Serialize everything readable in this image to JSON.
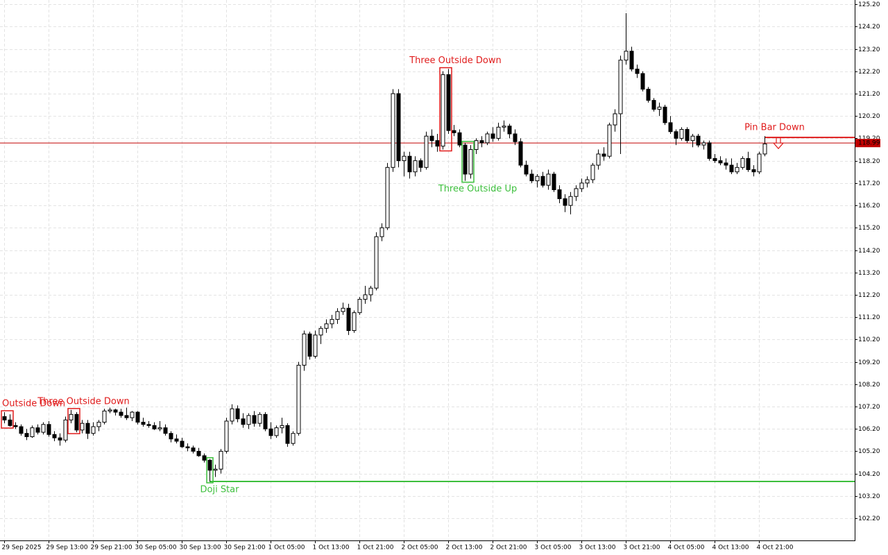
{
  "chart_data": {
    "type": "candlestick",
    "up_color": "#ffffff",
    "down_color": "#000000",
    "outline_color": "#000000",
    "grid": true,
    "ylim": [
      101.21,
      125.39
    ],
    "yticks": [
      {
        "value": 102.2,
        "label": "102.20"
      },
      {
        "value": 103.2,
        "label": "103.20"
      },
      {
        "value": 104.2,
        "label": "104.20"
      },
      {
        "value": 105.2,
        "label": "105.20"
      },
      {
        "value": 106.2,
        "label": "106.20"
      },
      {
        "value": 107.2,
        "label": "107.20"
      },
      {
        "value": 108.2,
        "label": "108.20"
      },
      {
        "value": 109.2,
        "label": "109.20"
      },
      {
        "value": 110.2,
        "label": "110.20"
      },
      {
        "value": 111.2,
        "label": "111.20"
      },
      {
        "value": 112.2,
        "label": "112.20"
      },
      {
        "value": 113.2,
        "label": "113.20"
      },
      {
        "value": 114.2,
        "label": "114.20"
      },
      {
        "value": 115.2,
        "label": "115.20"
      },
      {
        "value": 116.2,
        "label": "116.20"
      },
      {
        "value": 117.2,
        "label": "117.20"
      },
      {
        "value": 118.2,
        "label": "118.20"
      },
      {
        "value": 119.2,
        "label": "119.20"
      },
      {
        "value": 120.2,
        "label": "120.20"
      },
      {
        "value": 121.2,
        "label": "121.20"
      },
      {
        "value": 122.2,
        "label": "122.20"
      },
      {
        "value": 123.2,
        "label": "123.20"
      },
      {
        "value": 124.2,
        "label": "124.20"
      },
      {
        "value": 125.2,
        "label": "125.20"
      }
    ],
    "categories": [
      "29 Sep 2025",
      null,
      null,
      null,
      null,
      null,
      null,
      null,
      "29 Sep 13:00",
      null,
      null,
      null,
      null,
      null,
      null,
      null,
      "29 Sep 21:00",
      null,
      null,
      null,
      null,
      null,
      null,
      null,
      "30 Sep 05:00",
      null,
      null,
      null,
      null,
      null,
      null,
      null,
      "30 Sep 13:00",
      null,
      null,
      null,
      null,
      null,
      null,
      null,
      "30 Sep 21:00",
      null,
      null,
      null,
      null,
      null,
      null,
      null,
      "1 Oct 05:00",
      null,
      null,
      null,
      null,
      null,
      null,
      null,
      "1 Oct 13:00",
      null,
      null,
      null,
      null,
      null,
      null,
      null,
      "1 Oct 21:00",
      null,
      null,
      null,
      null,
      null,
      null,
      null,
      "2 Oct 05:00",
      null,
      null,
      null,
      null,
      null,
      null,
      null,
      "2 Oct 13:00",
      null,
      null,
      null,
      null,
      null,
      null,
      null,
      "2 Oct 21:00",
      null,
      null,
      null,
      null,
      null,
      null,
      null,
      "3 Oct 05:00",
      null,
      null,
      null,
      null,
      null,
      null,
      null,
      "3 Oct 13:00",
      null,
      null,
      null,
      null,
      null,
      null,
      null,
      "3 Oct 21:00",
      null,
      null,
      null,
      null,
      null,
      null,
      null,
      "4 Oct 05:00",
      null,
      null,
      null,
      null,
      null,
      null,
      null,
      "4 Oct 13:00",
      null,
      null,
      null,
      null,
      null,
      null,
      null,
      "4 Oct 21:00",
      null
    ],
    "ohlc": [
      [
        106.75,
        106.95,
        106.45,
        106.6
      ],
      [
        106.6,
        106.85,
        106.3,
        106.35
      ],
      [
        106.35,
        106.5,
        106.2,
        106.3
      ],
      [
        106.3,
        106.4,
        105.9,
        106.0
      ],
      [
        106.0,
        106.2,
        105.7,
        105.85
      ],
      [
        105.85,
        106.35,
        105.8,
        106.25
      ],
      [
        106.25,
        106.4,
        105.95,
        106.05
      ],
      [
        106.05,
        106.5,
        105.95,
        106.4
      ],
      [
        106.4,
        106.55,
        105.85,
        105.95
      ],
      [
        105.95,
        106.1,
        105.65,
        105.8
      ],
      [
        105.8,
        106.0,
        105.45,
        105.7
      ],
      [
        105.7,
        106.75,
        105.6,
        106.6
      ],
      [
        106.6,
        107.05,
        106.45,
        106.85
      ],
      [
        106.85,
        106.95,
        106.05,
        106.15
      ],
      [
        106.15,
        106.6,
        106.0,
        106.45
      ],
      [
        106.45,
        106.6,
        105.75,
        106.0
      ],
      [
        106.0,
        106.5,
        105.9,
        106.3
      ],
      [
        106.3,
        106.6,
        106.1,
        106.5
      ],
      [
        106.5,
        107.1,
        106.4,
        107.0
      ],
      [
        107.0,
        107.15,
        106.9,
        107.05
      ],
      [
        107.05,
        107.1,
        106.8,
        106.95
      ],
      [
        106.95,
        107.1,
        106.7,
        106.8
      ],
      [
        106.8,
        107.15,
        106.6,
        106.7
      ],
      [
        106.7,
        107.0,
        106.55,
        106.95
      ],
      [
        106.95,
        107.0,
        106.4,
        106.5
      ],
      [
        106.5,
        106.7,
        106.3,
        106.4
      ],
      [
        106.4,
        106.55,
        106.25,
        106.35
      ],
      [
        106.35,
        106.5,
        106.15,
        106.2
      ],
      [
        106.2,
        106.55,
        106.1,
        106.25
      ],
      [
        106.25,
        106.4,
        105.9,
        106.0
      ],
      [
        106.0,
        106.1,
        105.6,
        105.75
      ],
      [
        105.75,
        105.95,
        105.55,
        105.65
      ],
      [
        105.65,
        105.8,
        105.35,
        105.4
      ],
      [
        105.4,
        105.55,
        105.2,
        105.35
      ],
      [
        105.35,
        105.45,
        105.1,
        105.2
      ],
      [
        105.2,
        105.35,
        104.95,
        105.0
      ],
      [
        105.0,
        105.1,
        104.7,
        104.8
      ],
      [
        104.8,
        104.85,
        103.85,
        104.35
      ],
      [
        104.35,
        104.6,
        104.05,
        104.4
      ],
      [
        104.4,
        105.3,
        104.2,
        105.2
      ],
      [
        105.2,
        106.7,
        105.1,
        106.55
      ],
      [
        106.55,
        107.3,
        106.4,
        107.1
      ],
      [
        107.1,
        107.25,
        106.5,
        106.65
      ],
      [
        106.65,
        106.9,
        106.25,
        106.4
      ],
      [
        106.4,
        106.9,
        106.2,
        106.8
      ],
      [
        106.8,
        107.0,
        106.3,
        106.45
      ],
      [
        106.45,
        106.95,
        106.3,
        106.85
      ],
      [
        106.85,
        106.95,
        106.1,
        106.2
      ],
      [
        106.2,
        106.5,
        105.75,
        105.9
      ],
      [
        105.9,
        106.35,
        105.8,
        106.25
      ],
      [
        106.25,
        106.7,
        106.0,
        106.35
      ],
      [
        106.35,
        106.45,
        105.4,
        105.55
      ],
      [
        105.55,
        106.1,
        105.45,
        106.0
      ],
      [
        106.0,
        109.2,
        105.9,
        109.05
      ],
      [
        109.05,
        110.6,
        108.8,
        110.45
      ],
      [
        110.45,
        110.55,
        109.3,
        109.45
      ],
      [
        109.45,
        110.6,
        109.35,
        110.4
      ],
      [
        110.4,
        110.8,
        110.0,
        110.7
      ],
      [
        110.7,
        111.1,
        110.5,
        110.9
      ],
      [
        110.9,
        111.3,
        110.7,
        111.1
      ],
      [
        111.1,
        111.6,
        110.9,
        111.45
      ],
      [
        111.45,
        111.85,
        111.3,
        111.6
      ],
      [
        111.6,
        111.8,
        110.4,
        110.6
      ],
      [
        110.6,
        111.5,
        110.5,
        111.4
      ],
      [
        111.4,
        112.1,
        111.3,
        112.0
      ],
      [
        112.0,
        112.6,
        111.8,
        112.2
      ],
      [
        112.2,
        112.6,
        111.9,
        112.5
      ],
      [
        112.5,
        115.0,
        112.4,
        114.8
      ],
      [
        114.8,
        115.4,
        114.6,
        115.2
      ],
      [
        115.2,
        118.1,
        115.1,
        117.9
      ],
      [
        117.9,
        121.4,
        117.7,
        121.2
      ],
      [
        121.2,
        121.4,
        117.9,
        118.2
      ],
      [
        118.2,
        118.6,
        117.5,
        118.4
      ],
      [
        118.4,
        118.6,
        117.4,
        117.7
      ],
      [
        117.7,
        118.4,
        117.5,
        118.2
      ],
      [
        118.2,
        118.3,
        117.7,
        117.9
      ],
      [
        117.9,
        119.5,
        117.8,
        119.3
      ],
      [
        119.3,
        119.6,
        118.8,
        119.1
      ],
      [
        119.1,
        119.4,
        118.6,
        118.85
      ],
      [
        118.85,
        122.2,
        118.7,
        122.05
      ],
      [
        122.05,
        122.3,
        119.4,
        119.55
      ],
      [
        119.55,
        119.8,
        119.3,
        119.45
      ],
      [
        119.45,
        119.6,
        118.8,
        118.9
      ],
      [
        118.9,
        119.0,
        117.3,
        117.6
      ],
      [
        117.6,
        118.9,
        117.4,
        118.7
      ],
      [
        118.7,
        119.2,
        118.5,
        119.1
      ],
      [
        119.1,
        119.3,
        118.8,
        119.0
      ],
      [
        119.0,
        119.5,
        118.9,
        119.4
      ],
      [
        119.4,
        119.7,
        119.05,
        119.2
      ],
      [
        119.2,
        119.9,
        119.1,
        119.7
      ],
      [
        119.7,
        120.0,
        119.5,
        119.75
      ],
      [
        119.75,
        119.85,
        119.2,
        119.4
      ],
      [
        119.4,
        119.6,
        118.9,
        119.05
      ],
      [
        119.05,
        119.2,
        117.9,
        118.0
      ],
      [
        118.0,
        118.2,
        117.5,
        117.6
      ],
      [
        117.6,
        117.8,
        117.2,
        117.3
      ],
      [
        117.3,
        117.6,
        117.0,
        117.5
      ],
      [
        117.5,
        117.7,
        117.0,
        117.1
      ],
      [
        117.1,
        117.8,
        116.9,
        117.6
      ],
      [
        117.6,
        117.7,
        116.8,
        116.9
      ],
      [
        116.9,
        117.1,
        116.3,
        116.5
      ],
      [
        116.5,
        116.7,
        115.9,
        116.2
      ],
      [
        116.2,
        116.8,
        115.8,
        116.6
      ],
      [
        116.6,
        117.1,
        116.4,
        116.95
      ],
      [
        116.95,
        117.4,
        116.8,
        117.2
      ],
      [
        117.2,
        117.5,
        117.0,
        117.35
      ],
      [
        117.35,
        118.1,
        117.2,
        118.0
      ],
      [
        118.0,
        118.7,
        117.8,
        118.5
      ],
      [
        118.5,
        118.8,
        118.2,
        118.4
      ],
      [
        118.4,
        119.9,
        118.3,
        119.8
      ],
      [
        119.8,
        120.5,
        119.5,
        120.3
      ],
      [
        120.3,
        122.9,
        118.5,
        122.7
      ],
      [
        122.7,
        124.8,
        122.5,
        123.1
      ],
      [
        123.1,
        123.3,
        122.2,
        122.3
      ],
      [
        122.3,
        122.5,
        121.9,
        122.1
      ],
      [
        122.1,
        122.2,
        121.3,
        121.4
      ],
      [
        121.4,
        121.5,
        120.8,
        120.9
      ],
      [
        120.9,
        121.0,
        120.4,
        120.5
      ],
      [
        120.5,
        120.8,
        120.2,
        120.6
      ],
      [
        120.6,
        120.7,
        119.8,
        119.9
      ],
      [
        119.9,
        120.2,
        119.4,
        119.5
      ],
      [
        119.5,
        119.6,
        118.9,
        119.2
      ],
      [
        119.2,
        119.7,
        119.1,
        119.6
      ],
      [
        119.6,
        119.7,
        119.0,
        119.1
      ],
      [
        119.1,
        119.4,
        118.8,
        119.3
      ],
      [
        119.3,
        119.4,
        118.8,
        118.9
      ],
      [
        118.9,
        119.1,
        118.7,
        119.0
      ],
      [
        119.0,
        119.1,
        118.2,
        118.3
      ],
      [
        118.3,
        118.5,
        118.1,
        118.2
      ],
      [
        118.2,
        118.4,
        118.0,
        118.1
      ],
      [
        118.1,
        118.3,
        117.8,
        118.0
      ],
      [
        118.0,
        118.3,
        117.6,
        117.7
      ],
      [
        117.7,
        118.1,
        117.6,
        117.9
      ],
      [
        117.9,
        118.4,
        117.8,
        118.3
      ],
      [
        118.3,
        118.6,
        117.7,
        117.8
      ],
      [
        117.8,
        118.0,
        117.5,
        117.7
      ],
      [
        117.7,
        118.6,
        117.6,
        118.5
      ],
      [
        118.5,
        119.3,
        118.4,
        118.95
      ]
    ],
    "current_price": 118.99,
    "current_price_color": "#c00000",
    "patterns": [
      {
        "label": "Outside Down",
        "color": "#e01b1b",
        "candles": [
          0,
          1
        ]
      },
      {
        "label": "Three Outside Down",
        "color": "#e01b1b",
        "candles": [
          12,
          13
        ]
      },
      {
        "label": "Doji Star",
        "color": "#3cbf3c",
        "candles": [
          37,
          37
        ],
        "level": 103.85
      },
      {
        "label": "Three Outside Down",
        "color": "#e01b1b",
        "candles": [
          79,
          80
        ]
      },
      {
        "label": "Three Outside Up",
        "color": "#3cbf3c",
        "candles": [
          83,
          84
        ]
      },
      {
        "label": "Pin Bar Down",
        "color": "#e01b1b",
        "candles": [
          137,
          137
        ],
        "level": 119.24,
        "arrow": "down"
      }
    ]
  }
}
